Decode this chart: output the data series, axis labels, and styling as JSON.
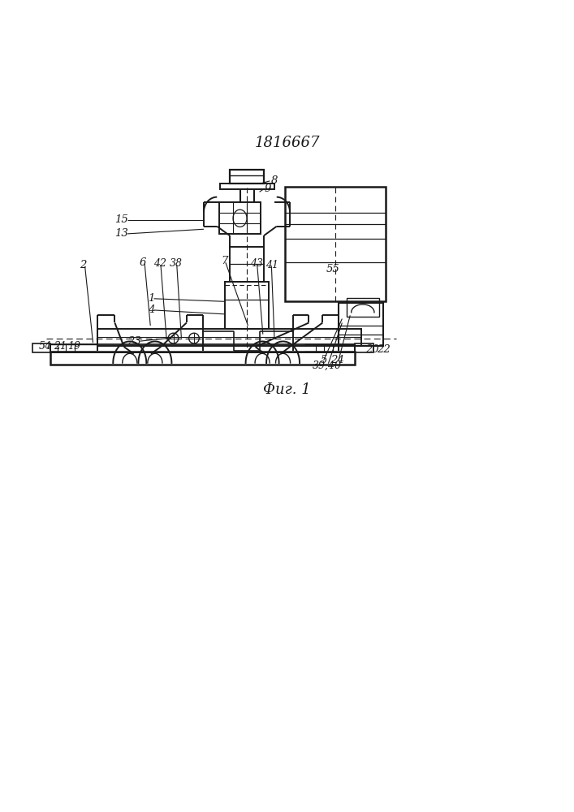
{
  "title": "1816667",
  "fig_label": "Фиг. 1",
  "bg_color": "#ffffff",
  "lc": "#1a1a1a"
}
